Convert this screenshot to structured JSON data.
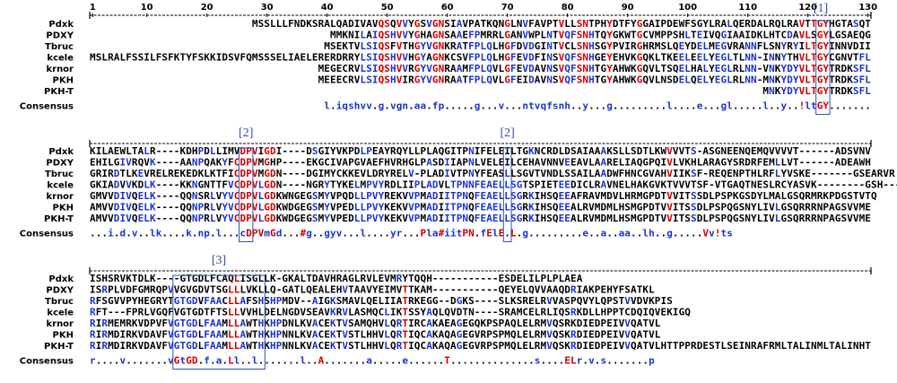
{
  "blocks": [
    {
      "labels": [
        "[1]"
      ],
      "ruler": [
        1,
        10,
        20,
        30,
        40,
        50,
        60,
        70,
        80,
        90,
        100,
        110,
        120,
        130
      ],
      "rows": [
        {
          "name": "Pdxk",
          "seq": "MSSLLLFNDKSRALQADIVAVQSQVVYGSVGNSIAVPATKQNGLNVFAVPTVLLSNTPHYDTFYGGAIPDEWFSGYLRALQERDALRQLRAVTTGYHGTASQT"
        },
        {
          "name": "PDXY",
          "seq": "MMKNILAIQSHVVYGHAGNSAAEFPMRRLGANVWPLNTVQFSNHTQYGKWTGCVMPPSHLTEIVQGIAAIDKLHTCDAVLSGYLGSAEQG"
        },
        {
          "name": "Tbruc",
          "seq": "MSEKTVLSIQSFVTHGYVGNKRATFPLQLHGFDVDGINTVCLSNHSGYPVIRGHRMSLQEYDELMEGVRANNFLSNYRYILTGYINNVDII"
        },
        {
          "name": "kcele",
          "seq": "MSLRALFSSILFSFKTYFSKKIDSVFQMSSSELIAELERERDRRYLSIQSHVVHGYAGNKCSVFPLQLHGFEVDFINSVQFSNHGEYEHVKGQKLTKEELEELYEGLTLNN-INNYTHVLTGYCGNVTFL"
        },
        {
          "name": "krnor",
          "seq": "MEGECRVLSIQSHVVRGYVGNRAAMFPLQVLGFEVDAVNSVQFSNHTGYAHWKGQVLTSQELHALYEGLRLNN-VNKYDYVLTGYTRDKSFL"
        },
        {
          "name": "PKH",
          "seq": "MEEECRVLSIQSHVIRGYVGNRAATFPLQVLGFEIDAVNSVQFSNHTGYAHWKGQVLNSDELQELYEGLRLNN-MNKYDYVLTGYTRDKSFL"
        },
        {
          "name": "PKH-T",
          "seq": "MNKYDYVLTGYTRDKSFL"
        },
        {
          "name": "Consensus",
          "seq": "l.iqshvv.g.vgn.aa.fp.....g...v...ntvqfsnh..y...g.........l....e...gl.....l..y..!ltGY......."
        }
      ]
    },
    {
      "labels": [
        "[2]",
        "[2]"
      ],
      "rows": [
        {
          "name": "Pdxk",
          "seq": "KILAEWLTALR----KDHPDLLIMVDPVIGDI----DSGIYVKPDLPEAYRQYLLPLAQGITPNIFELEILTGKNCRDLDSAIAAAKSLLSDTLKWVVVTS-ASGNEENQEMQVVVVT------ADSVNV"
        },
        {
          "name": "PDXY",
          "seq": "EHILGIVRQVK----AANPQAKYFCDPVMGHP----EKGCIVAPGVAEFHVRHGLPASDIIAPNLVELEILCEHAVNNVEEAVLAARELIAQGPQIVLVKHLARAGYSRDRFEMLLVT------ADEAWH"
        },
        {
          "name": "Tbruc",
          "seq": "GRIRDTLKEVRELREKEDKLKTFICDPVMGDN----DGIMYCKKEVLDRYRELV-PLADIVTPNYFEASLLSGVTVNDLSSAILAADWFHNCGVAHVIIKSF-REQENPTHLRFLYVSKE-------GSEARVR"
        },
        {
          "name": "kcele",
          "seq": "GKIADVVKDLK----KKNGNTTFVCDPVLGDN----NGRYTYKELMPVYRDLIIPLADVLTPNNFEAELLSGTSPIETEEDICLRAVNELHAKGVKTVVVTSF-VTGAQTNESLRCYASVK--------GSH---VY"
        },
        {
          "name": "krnor",
          "seq": "GMVVDIVQELK----QQNSRLVYVCDPVLGDKWNGEGSMYVPQDLLPVYREKVVPMADIITPNQFEAELLSGRKIHSQEEAFRAVMDVLHRMGPDTVVITSSDLPSPKGSDYLMALGSQRMRKPDGSTVTQ"
        },
        {
          "name": "PKH",
          "seq": "AMVVDIVQELK----QQNPRLVYVCDPVLGDKWDGEGSMYVPEDLLPVYKEKVVPMADIITPNQFEAELLSGRKIHSQEEALRVMDMLHSMGPDTVVITSSDLPSPQGSNYLIVLGSQRRRNPAGSVVME"
        },
        {
          "name": "PKH-T",
          "seq": "AMVVDIVQELK----QQNPRLVYVCDPVLGDKWDGEGSMYVPEDLLPVYKEKVVPMADIITPNQFEAELLSGRKIHSQEEALRVMDMLHSMGPDTVVITSSDLPSPQGSNYLIVLGSQRRRNPAGSVVME"
        },
        {
          "name": "Consensus",
          "seq": "...i.d.v..lk....k.np.l...cDPVmGd...#g..gyv...l....yr...Pla#iitPN.fElE.L.g.........e..a..aa..lh..g.....Vv!ts"
        }
      ]
    },
    {
      "labels": [
        "[3]"
      ],
      "rows": [
        {
          "name": "Pdxk",
          "seq": "ISHSRVKTDLK----GTGDLFCAQLISGLLK-GKALTDAVHRAGLRVLEVMRYTQQH-----------ESDELILPLPLAEA"
        },
        {
          "name": "PDXY",
          "seq": "ISRPLVDFGMRQPVVGVGDVTSGLLLVKLLQ-GATLQEALEHVTAAVYEIMVTTKAM-----------QEYELQVVAAQDRIAKPEHYFSATKL"
        },
        {
          "name": "Tbruc",
          "seq": "RFSGVVPYHEGRYTGTGDVFAACLLAFSHSHPMDV--AIGKSMAVLQELIIATRKEGG--DGKS----SLKSRELRVVASPQVYLQPSTVVDVKPIS"
        },
        {
          "name": "kcele",
          "seq": "RFT---FPRLVGQFVGTGDTFTSLLVVHLDELNGDVSEAVKRVLASMQCLIKTSSYAQLQVDTN----SRAMCELRLIQSRKDLLHPPTCDQIQVEKIGQ"
        },
        {
          "name": "krnor",
          "seq": "RIRMEMRKVDPVFVGTGDLFAAMLLAWTHKHPDNLKVACEKTVSAMQHVLQRTIRCAKAEAGEGQKPSPAQLELRMVQSRKDIEDPEIVVQATVL"
        },
        {
          "name": "PKH",
          "seq": "RIRMDIRKVDAVFVGTGDLFAAMLLAWTHKHPNNLKVACEKTVSTLHHVLQRTIQCAKAQAGEGVRPSPMQLELRMVQSKRDIEDPEIVVQATVL"
        },
        {
          "name": "PKH-T",
          "seq": "RIRMDIRKVDAVFVGTGDLFAAMLLAWTHKHPNNLKVACEKTVSTLHHVLQRTIQCAKAQAGEGVRPSPMQLELRMVQSKRDIEDPEIVVQATVLHTTPPRDESTLSEINRAFRMLTALINMLTALINHT"
        },
        {
          "name": "Consensus",
          "seq": "r....v.......vGtGD.f.a.Ll..l.......l..A.......a.....e......T..............s....ELr.v.s.......p"
        }
      ]
    }
  ]
}
